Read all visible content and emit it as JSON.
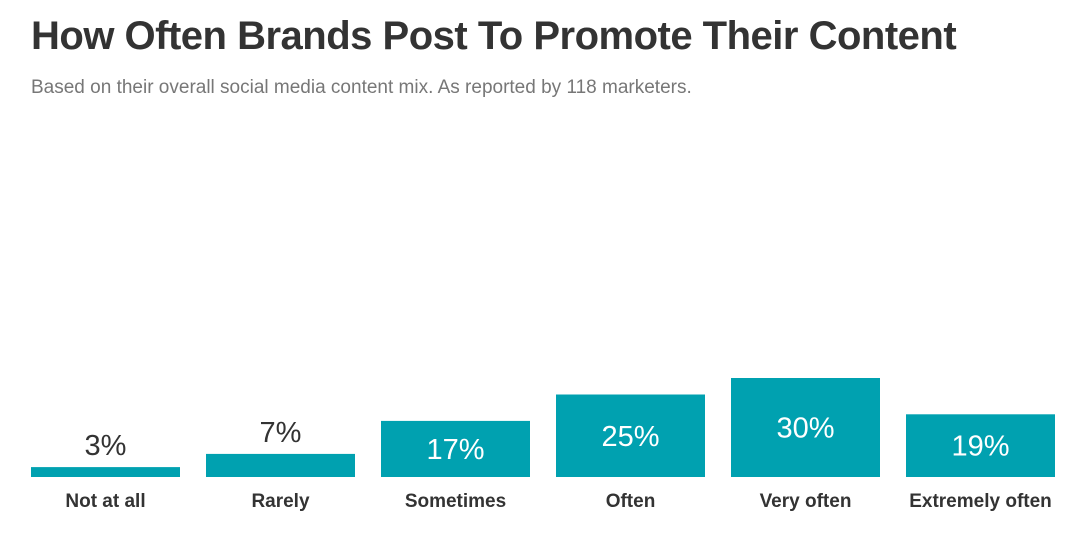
{
  "chart_data": {
    "type": "bar",
    "title": "How Often Brands Post To Promote Their Content",
    "subtitle": "Based on their overall social media content mix. As reported by 118 marketers.",
    "categories": [
      "Not at all",
      "Rarely",
      "Sometimes",
      "Often",
      "Very often",
      "Extremely often"
    ],
    "values": [
      3,
      7,
      17,
      25,
      30,
      19
    ],
    "value_labels": [
      "3%",
      "7%",
      "17%",
      "25%",
      "30%",
      "19%"
    ],
    "ylim": [
      0,
      30
    ],
    "grid": false,
    "legend": "none",
    "colors": {
      "bar": "#00A1B0",
      "label_inside": "#ffffff",
      "label_outside": "#333333"
    }
  }
}
